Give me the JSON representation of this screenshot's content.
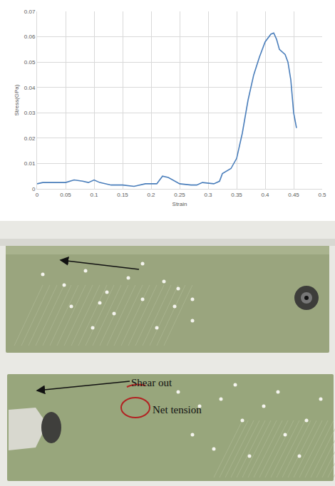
{
  "chart_data": {
    "type": "line",
    "x_label": "Strain",
    "y_label": "Stress(GPa)",
    "x": [
      0,
      0.01,
      0.05,
      0.065,
      0.08,
      0.09,
      0.1,
      0.11,
      0.13,
      0.15,
      0.17,
      0.19,
      0.21,
      0.22,
      0.23,
      0.25,
      0.27,
      0.28,
      0.29,
      0.31,
      0.32,
      0.325,
      0.34,
      0.35,
      0.36,
      0.37,
      0.38,
      0.39,
      0.4,
      0.41,
      0.415,
      0.42,
      0.425,
      0.435,
      0.44,
      0.445,
      0.45,
      0.455
    ],
    "values": [
      0.002,
      0.0025,
      0.0025,
      0.0035,
      0.003,
      0.0025,
      0.0035,
      0.0025,
      0.0015,
      0.0015,
      0.001,
      0.002,
      0.002,
      0.005,
      0.0045,
      0.002,
      0.0015,
      0.0015,
      0.0025,
      0.002,
      0.003,
      0.006,
      0.008,
      0.012,
      0.022,
      0.035,
      0.045,
      0.052,
      0.058,
      0.061,
      0.0615,
      0.059,
      0.055,
      0.053,
      0.05,
      0.043,
      0.03,
      0.024
    ],
    "color": "#4a7ebb",
    "xlim": [
      0,
      0.5
    ],
    "xticks": [
      0,
      0.05,
      0.1,
      0.15,
      0.2,
      0.25,
      0.3,
      0.35,
      0.4,
      0.45,
      0.5
    ],
    "ylim": [
      0,
      0.07
    ],
    "yticks": [
      0,
      0.01,
      0.02,
      0.03,
      0.04,
      0.05,
      0.06,
      0.07
    ],
    "grid": true
  },
  "photo": {
    "labels": [
      "Shear out",
      "Net tension"
    ]
  }
}
